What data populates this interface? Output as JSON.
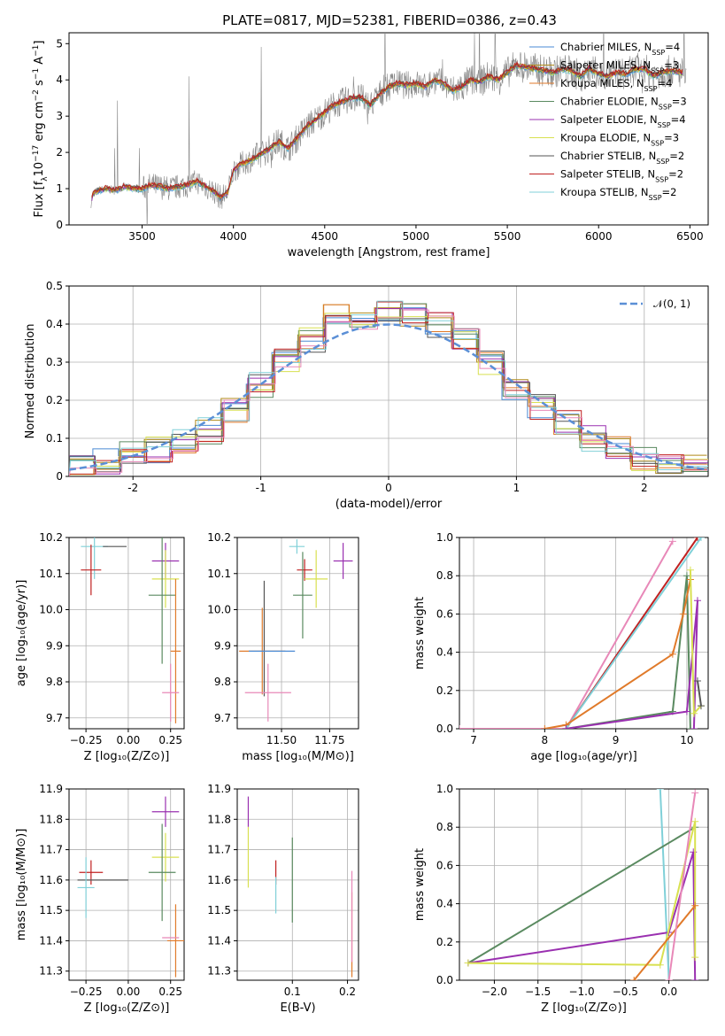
{
  "title": "PLATE=0817, MJD=52381, FIBERID=0386, z=0.43",
  "colors": {
    "Chabrier MILES": "#4a8ad4",
    "Salpeter MILES": "#b08a1a",
    "Kroupa MILES": "#e07a2a",
    "Chabrier ELODIE": "#5a8a60",
    "Salpeter ELODIE": "#9a30b0",
    "Kroupa ELODIE": "#d8e050",
    "Chabrier STELIB": "#555555",
    "Salpeter STELIB": "#c02020",
    "Kroupa STELIB": "#80d0d8",
    "pink": "#e888b8",
    "data": "#888888"
  },
  "chart_data": [
    {
      "id": "spectrum",
      "type": "line",
      "title": "PLATE=0817, MJD=52381, FIBERID=0386, z=0.43",
      "xlabel": "wavelength [Angstrom, rest frame]",
      "ylabel_parts": [
        "Flux [f",
        "λ",
        "10",
        "−17",
        " erg cm",
        "−2",
        " s",
        "−1",
        " A",
        "−1",
        "]"
      ],
      "xlim": [
        3100,
        6600
      ],
      "ylim": [
        0,
        5.3
      ],
      "xticks": [
        3500,
        4000,
        4500,
        5000,
        5500,
        6000,
        6500
      ],
      "yticks": [
        0,
        1,
        2,
        3,
        4,
        5
      ],
      "legend": {
        "placement": "upper right",
        "entries": [
          {
            "name": "Chabrier MILES",
            "nssp": "4"
          },
          {
            "name": "Salpeter MILES",
            "nssp": "3"
          },
          {
            "name": "Kroupa MILES",
            "nssp": "4"
          },
          {
            "name": "Chabrier ELODIE",
            "nssp": "3"
          },
          {
            "name": "Salpeter ELODIE",
            "nssp": "4"
          },
          {
            "name": "Kroupa ELODIE",
            "nssp": "3"
          },
          {
            "name": "Chabrier STELIB",
            "nssp": "2"
          },
          {
            "name": "Salpeter STELIB",
            "nssp": "2"
          },
          {
            "name": "Kroupa STELIB",
            "nssp": "2"
          }
        ]
      },
      "model_x": [
        3200,
        3230,
        3260,
        3300,
        3350,
        3400,
        3450,
        3500,
        3550,
        3600,
        3650,
        3700,
        3750,
        3800,
        3850,
        3900,
        3930,
        3970,
        4000,
        4050,
        4100,
        4150,
        4200,
        4250,
        4300,
        4350,
        4400,
        4450,
        4500,
        4550,
        4600,
        4650,
        4700,
        4750,
        4800,
        4850,
        4900,
        4950,
        5000,
        5050,
        5100,
        5150,
        5200,
        5250,
        5300,
        5350,
        5400,
        5450,
        5500,
        5550,
        5600,
        5650,
        5700,
        5750,
        5800,
        5850,
        5900,
        5950,
        6000,
        6050,
        6100,
        6150,
        6200,
        6250,
        6300,
        6350,
        6400,
        6450
      ],
      "model_y": [
        0.05,
        0.85,
        0.95,
        1.0,
        0.95,
        1.05,
        1.0,
        1.0,
        1.1,
        1.05,
        1.0,
        1.05,
        1.1,
        1.2,
        1.05,
        0.9,
        0.75,
        0.9,
        1.5,
        1.7,
        1.8,
        1.95,
        2.1,
        2.3,
        2.1,
        2.4,
        2.7,
        2.9,
        3.1,
        3.3,
        3.4,
        3.5,
        3.5,
        3.3,
        3.6,
        3.8,
        3.9,
        3.85,
        3.9,
        3.8,
        4.0,
        3.9,
        3.7,
        3.8,
        4.0,
        3.95,
        4.1,
        4.0,
        4.2,
        4.4,
        4.35,
        4.3,
        4.25,
        4.2,
        4.3,
        4.25,
        4.1,
        4.3,
        4.15,
        4.1,
        4.2,
        4.15,
        4.3,
        4.3,
        4.1,
        4.2,
        4.25,
        4.2
      ]
    },
    {
      "id": "residuals",
      "type": "bar",
      "xlabel": "(data-model)/error",
      "ylabel": "Normed distribution",
      "xlim": [
        -2.5,
        2.5
      ],
      "ylim": [
        0,
        0.5
      ],
      "xticks": [
        -2,
        -1,
        0,
        1,
        2
      ],
      "yticks": [
        0.0,
        0.1,
        0.2,
        0.3,
        0.4,
        0.5
      ],
      "legend": {
        "placement": "upper right",
        "label": "𝒩(0, 1)"
      },
      "bin_edges": [
        -2.5,
        -2.3,
        -2.1,
        -1.9,
        -1.7,
        -1.5,
        -1.3,
        -1.1,
        -0.9,
        -0.7,
        -0.5,
        -0.3,
        -0.1,
        0.1,
        0.3,
        0.5,
        0.7,
        0.9,
        1.1,
        1.3,
        1.5,
        1.7,
        1.9,
        2.1,
        2.3,
        2.5
      ],
      "hist": [
        0.02,
        0.04,
        0.06,
        0.07,
        0.09,
        0.12,
        0.17,
        0.24,
        0.3,
        0.36,
        0.42,
        0.4,
        0.44,
        0.42,
        0.4,
        0.36,
        0.3,
        0.22,
        0.18,
        0.14,
        0.1,
        0.07,
        0.05,
        0.03,
        0.03
      ]
    },
    {
      "id": "age-vs-Z",
      "type": "scatter",
      "xlabel": "Z [log₁₀(Z/Z⊙)]",
      "ylabel": "age  [log₁₀(age/yr)]",
      "xlim": [
        -0.35,
        0.33
      ],
      "ylim": [
        9.67,
        10.2
      ],
      "xticks": [
        "−0.25",
        "0.00",
        "0.25"
      ],
      "xtick_values": [
        -0.25,
        0,
        0.25
      ],
      "yticks": [
        "9.7",
        "9.8",
        "9.9",
        "10.0",
        "10.1",
        "10.2"
      ],
      "ytick_values": [
        9.7,
        9.8,
        9.9,
        10.0,
        10.1,
        10.2
      ],
      "points": [
        {
          "c": "Kroupa STELIB",
          "x": -0.2,
          "y": 10.175,
          "xe": 0.08,
          "ye": 0.09
        },
        {
          "c": "Chabrier STELIB",
          "x": -0.08,
          "y": 10.175,
          "xe": 0.07,
          "ye": 0
        },
        {
          "c": "Salpeter STELIB",
          "x": -0.22,
          "y": 10.11,
          "xe": 0.06,
          "ye": 0.07
        },
        {
          "c": "Salpeter ELODIE",
          "x": 0.22,
          "y": 10.135,
          "xe": 0.08,
          "ye": 0.05
        },
        {
          "c": "Kroupa ELODIE",
          "x": 0.22,
          "y": 10.085,
          "xe": 0.08,
          "ye": 0.08
        },
        {
          "c": "Chabrier ELODIE",
          "x": 0.2,
          "y": 10.04,
          "xe": 0.08,
          "ye": 0.19
        },
        {
          "c": "Kroupa MILES",
          "x": 0.28,
          "y": 9.885,
          "xe": 0.03,
          "ye": 0.2
        },
        {
          "c": "pink",
          "x": 0.25,
          "y": 9.77,
          "xe": 0.05,
          "ye": 0.08
        }
      ]
    },
    {
      "id": "age-vs-mass",
      "type": "scatter",
      "xlabel": "mass [log₁₀(M/M⊙)]",
      "xlim": [
        11.27,
        11.9
      ],
      "ylim": [
        9.67,
        10.2
      ],
      "xticks": [
        "11.50",
        "11.75"
      ],
      "xtick_values": [
        11.5,
        11.75
      ],
      "yticks": [
        "9.7",
        "9.8",
        "9.9",
        "10.0",
        "10.1",
        "10.2"
      ],
      "ytick_values": [
        9.7,
        9.8,
        9.9,
        10.0,
        10.1,
        10.2
      ],
      "points": [
        {
          "c": "Kroupa STELIB",
          "x": 11.58,
          "y": 10.175,
          "xe": 0.04,
          "ye": 0.02
        },
        {
          "c": "Salpeter STELIB",
          "x": 11.62,
          "y": 10.11,
          "xe": 0.04,
          "ye": 0.03
        },
        {
          "c": "Salpeter ELODIE",
          "x": 11.82,
          "y": 10.135,
          "xe": 0.05,
          "ye": 0.05
        },
        {
          "c": "Kroupa ELODIE",
          "x": 11.68,
          "y": 10.085,
          "xe": 0.06,
          "ye": 0.08
        },
        {
          "c": "Chabrier ELODIE",
          "x": 11.61,
          "y": 10.04,
          "xe": 0.05,
          "ye": 0.12
        },
        {
          "c": "Chabrier STELIB",
          "x": 11.41,
          "y": 9.92,
          "xe": 0,
          "ye": 0.16
        },
        {
          "c": "Kroupa MILES",
          "x": 11.4,
          "y": 9.885,
          "xe": 0.12,
          "ye": 0.12
        },
        {
          "c": "Chabrier MILES",
          "x": 11.45,
          "y": 9.885,
          "xe": 0.12,
          "ye": 0
        },
        {
          "c": "pink",
          "x": 11.43,
          "y": 9.77,
          "xe": 0.12,
          "ye": 0.08
        }
      ]
    },
    {
      "id": "mass-weight-vs-age",
      "type": "line",
      "xlabel": "age  [log₁₀(age/yr)]",
      "ylabel": "mass weight",
      "xlim": [
        6.8,
        10.3
      ],
      "ylim": [
        0,
        1.0
      ],
      "xticks": [
        "7",
        "8",
        "9",
        "10"
      ],
      "xtick_values": [
        7,
        8,
        9,
        10
      ],
      "yticks": [
        "0.0",
        "0.2",
        "0.4",
        "0.6",
        "0.8",
        "1.0"
      ],
      "ytick_values": [
        0,
        0.2,
        0.4,
        0.6,
        0.8,
        1.0
      ],
      "series": [
        {
          "c": "pink",
          "x": [
            6.8,
            8.3,
            9.8
          ],
          "y": [
            0.0,
            0.0,
            0.98
          ]
        },
        {
          "c": "Salpeter STELIB",
          "x": [
            8.3,
            10.15
          ],
          "y": [
            0.0,
            1.0
          ]
        },
        {
          "c": "Kroupa STELIB",
          "x": [
            8.3,
            10.2
          ],
          "y": [
            0.0,
            1.0
          ]
        },
        {
          "c": "Chabrier ELODIE",
          "x": [
            8.3,
            9.8,
            10.0,
            10.05
          ],
          "y": [
            0.0,
            0.09,
            0.8,
            0.0
          ]
        },
        {
          "c": "Kroupa MILES",
          "x": [
            8.0,
            8.3,
            9.8,
            9.95,
            10.05
          ],
          "y": [
            0.0,
            0.02,
            0.39,
            0.6,
            0.78
          ]
        },
        {
          "c": "Salpeter ELODIE",
          "x": [
            8.3,
            10.0,
            10.15,
            10.1
          ],
          "y": [
            0.0,
            0.09,
            0.67,
            0.0
          ]
        },
        {
          "c": "Kroupa ELODIE",
          "x": [
            10.05,
            10.1,
            10.2
          ],
          "y": [
            0.83,
            0.08,
            0.12
          ]
        },
        {
          "c": "Chabrier STELIB",
          "x": [
            10.2,
            10.15
          ],
          "y": [
            0.12,
            0.25
          ]
        }
      ]
    },
    {
      "id": "mass-vs-Z",
      "type": "scatter",
      "xlabel": "Z [log₁₀(Z/Z⊙)]",
      "ylabel": "mass [log₁₀(M/M⊙)]",
      "xlim": [
        -0.35,
        0.33
      ],
      "ylim": [
        11.27,
        11.9
      ],
      "xticks": [
        "−0.25",
        "0.00",
        "0.25"
      ],
      "xtick_values": [
        -0.25,
        0,
        0.25
      ],
      "yticks": [
        "11.3",
        "11.4",
        "11.5",
        "11.6",
        "11.7",
        "11.8",
        "11.9"
      ],
      "ytick_values": [
        11.3,
        11.4,
        11.5,
        11.6,
        11.7,
        11.8,
        11.9
      ],
      "points": [
        {
          "c": "Salpeter ELODIE",
          "x": 0.22,
          "y": 11.825,
          "xe": 0.08,
          "ye": 0.05
        },
        {
          "c": "Kroupa ELODIE",
          "x": 0.22,
          "y": 11.675,
          "xe": 0.08,
          "ye": 0.08
        },
        {
          "c": "Salpeter STELIB",
          "x": -0.22,
          "y": 11.625,
          "xe": 0.07,
          "ye": 0.04
        },
        {
          "c": "Chabrier ELODIE",
          "x": 0.2,
          "y": 11.625,
          "xe": 0.08,
          "ye": 0.16
        },
        {
          "c": "Chabrier STELIB",
          "x": -0.15,
          "y": 11.6,
          "xe": 0.15,
          "ye": 0
        },
        {
          "c": "Kroupa STELIB",
          "x": -0.25,
          "y": 11.575,
          "xe": 0.05,
          "ye": 0.1
        },
        {
          "c": "Kroupa MILES",
          "x": 0.28,
          "y": 11.4,
          "xe": 0.05,
          "ye": 0.12
        },
        {
          "c": "pink",
          "x": 0.25,
          "y": 11.41,
          "xe": 0.05,
          "ye": 0
        }
      ]
    },
    {
      "id": "mass-vs-EBV",
      "type": "scatter",
      "xlabel": "E(B-V)",
      "xlim": [
        0.0,
        0.22
      ],
      "ylim": [
        11.27,
        11.9
      ],
      "xticks": [
        "0.1",
        "0.2"
      ],
      "xtick_values": [
        0.1,
        0.2
      ],
      "yticks": [
        "11.3",
        "11.4",
        "11.5",
        "11.6",
        "11.7",
        "11.8",
        "11.9"
      ],
      "ytick_values": [
        11.3,
        11.4,
        11.5,
        11.6,
        11.7,
        11.8,
        11.9
      ],
      "points": [
        {
          "c": "Salpeter ELODIE",
          "x": 0.02,
          "y": 11.825,
          "xe": 0,
          "ye": 0.05
        },
        {
          "c": "Kroupa ELODIE",
          "x": 0.02,
          "y": 11.675,
          "xe": 0,
          "ye": 0.1
        },
        {
          "c": "Salpeter STELIB",
          "x": 0.07,
          "y": 11.625,
          "xe": 0,
          "ye": 0.04
        },
        {
          "c": "Kroupa STELIB",
          "x": 0.07,
          "y": 11.55,
          "xe": 0,
          "ye": 0.06
        },
        {
          "c": "Chabrier ELODIE",
          "x": 0.1,
          "y": 11.6,
          "xe": 0,
          "ye": 0.14
        },
        {
          "c": "Kroupa MILES",
          "x": 0.208,
          "y": 11.42,
          "xe": 0,
          "ye": 0.14
        },
        {
          "c": "pink",
          "x": 0.208,
          "y": 11.48,
          "xe": 0,
          "ye": 0.15
        }
      ]
    },
    {
      "id": "mass-weight-vs-Z",
      "type": "line",
      "xlabel": "Z [log₁₀(Z/Z⊙)]",
      "ylabel": "mass weight",
      "xlim": [
        -2.4,
        0.45
      ],
      "ylim": [
        0,
        1.0
      ],
      "xticks": [
        "−2.0",
        "−1.5",
        "−1.0",
        "−0.5",
        "0.0"
      ],
      "xtick_values": [
        -2.0,
        -1.5,
        -1.0,
        -0.5,
        0.0
      ],
      "yticks": [
        "0.0",
        "0.2",
        "0.4",
        "0.6",
        "0.8",
        "1.0"
      ],
      "ytick_values": [
        0,
        0.2,
        0.4,
        0.6,
        0.8,
        1.0
      ],
      "series": [
        {
          "c": "Kroupa STELIB",
          "x": [
            -0.1,
            0.0
          ],
          "y": [
            1.0,
            0.0
          ]
        },
        {
          "c": "Chabrier ELODIE",
          "x": [
            -2.3,
            0.3
          ],
          "y": [
            0.09,
            0.8
          ]
        },
        {
          "c": "Salpeter ELODIE",
          "x": [
            -2.3,
            0.0,
            0.28,
            0.3
          ],
          "y": [
            0.09,
            0.25,
            0.67,
            0.0
          ]
        },
        {
          "c": "Kroupa ELODIE",
          "x": [
            -2.3,
            -0.1,
            0.3,
            0.3
          ],
          "y": [
            0.09,
            0.08,
            0.83,
            0.12
          ]
        },
        {
          "c": "Kroupa MILES",
          "x": [
            -0.4,
            0.3
          ],
          "y": [
            0.0,
            0.39
          ]
        },
        {
          "c": "pink",
          "x": [
            0.0,
            0.3
          ],
          "y": [
            0.0,
            0.98
          ]
        }
      ]
    }
  ]
}
